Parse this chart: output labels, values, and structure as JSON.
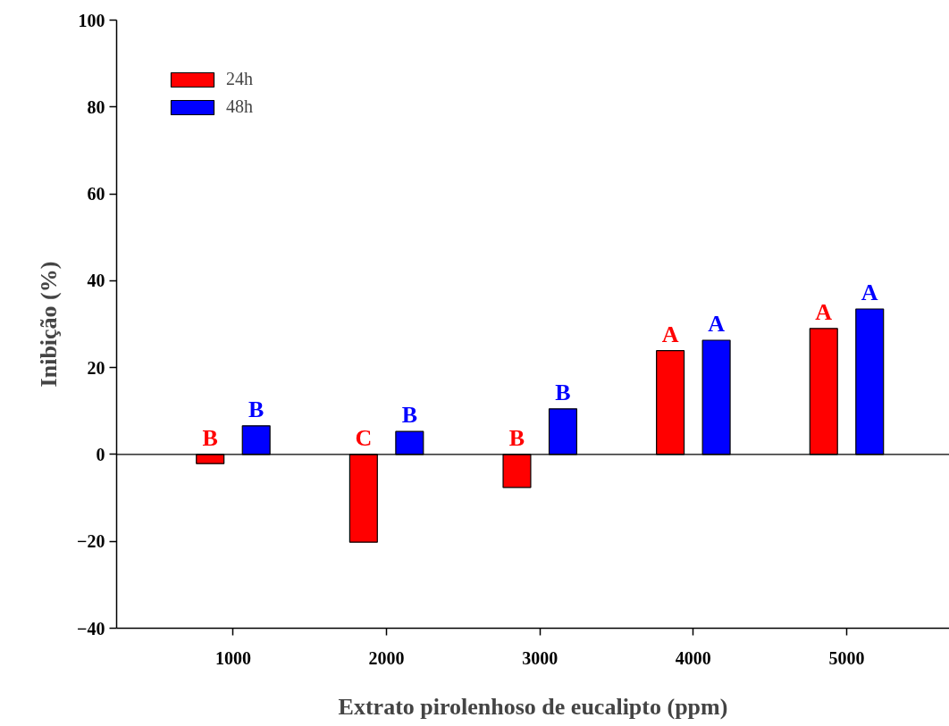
{
  "chart_data": {
    "type": "bar",
    "xlabel": "Extrato pirolenhoso de eucalipto (ppm)",
    "ylabel": "Inibição (%)",
    "categories": [
      "1000",
      "2000",
      "3000",
      "4000",
      "5000"
    ],
    "series": [
      {
        "name": "24h",
        "color": "#ff0000",
        "values": [
          -2.1,
          -20.2,
          -7.6,
          23.9,
          29.0
        ],
        "value_labels": [
          "B",
          "C",
          "B",
          "A",
          "A"
        ]
      },
      {
        "name": "48h",
        "color": "#0000ff",
        "values": [
          6.6,
          5.3,
          10.5,
          26.3,
          33.5
        ],
        "value_labels": [
          "B",
          "B",
          "B",
          "A",
          "A"
        ]
      }
    ],
    "ylim": [
      -40,
      100
    ],
    "yticks": [
      -40,
      -20,
      0,
      20,
      40,
      60,
      80,
      100
    ],
    "ref_lines": [
      {
        "axis": "y",
        "value": 0,
        "label": null
      }
    ],
    "grid": false,
    "legend": "top left"
  }
}
